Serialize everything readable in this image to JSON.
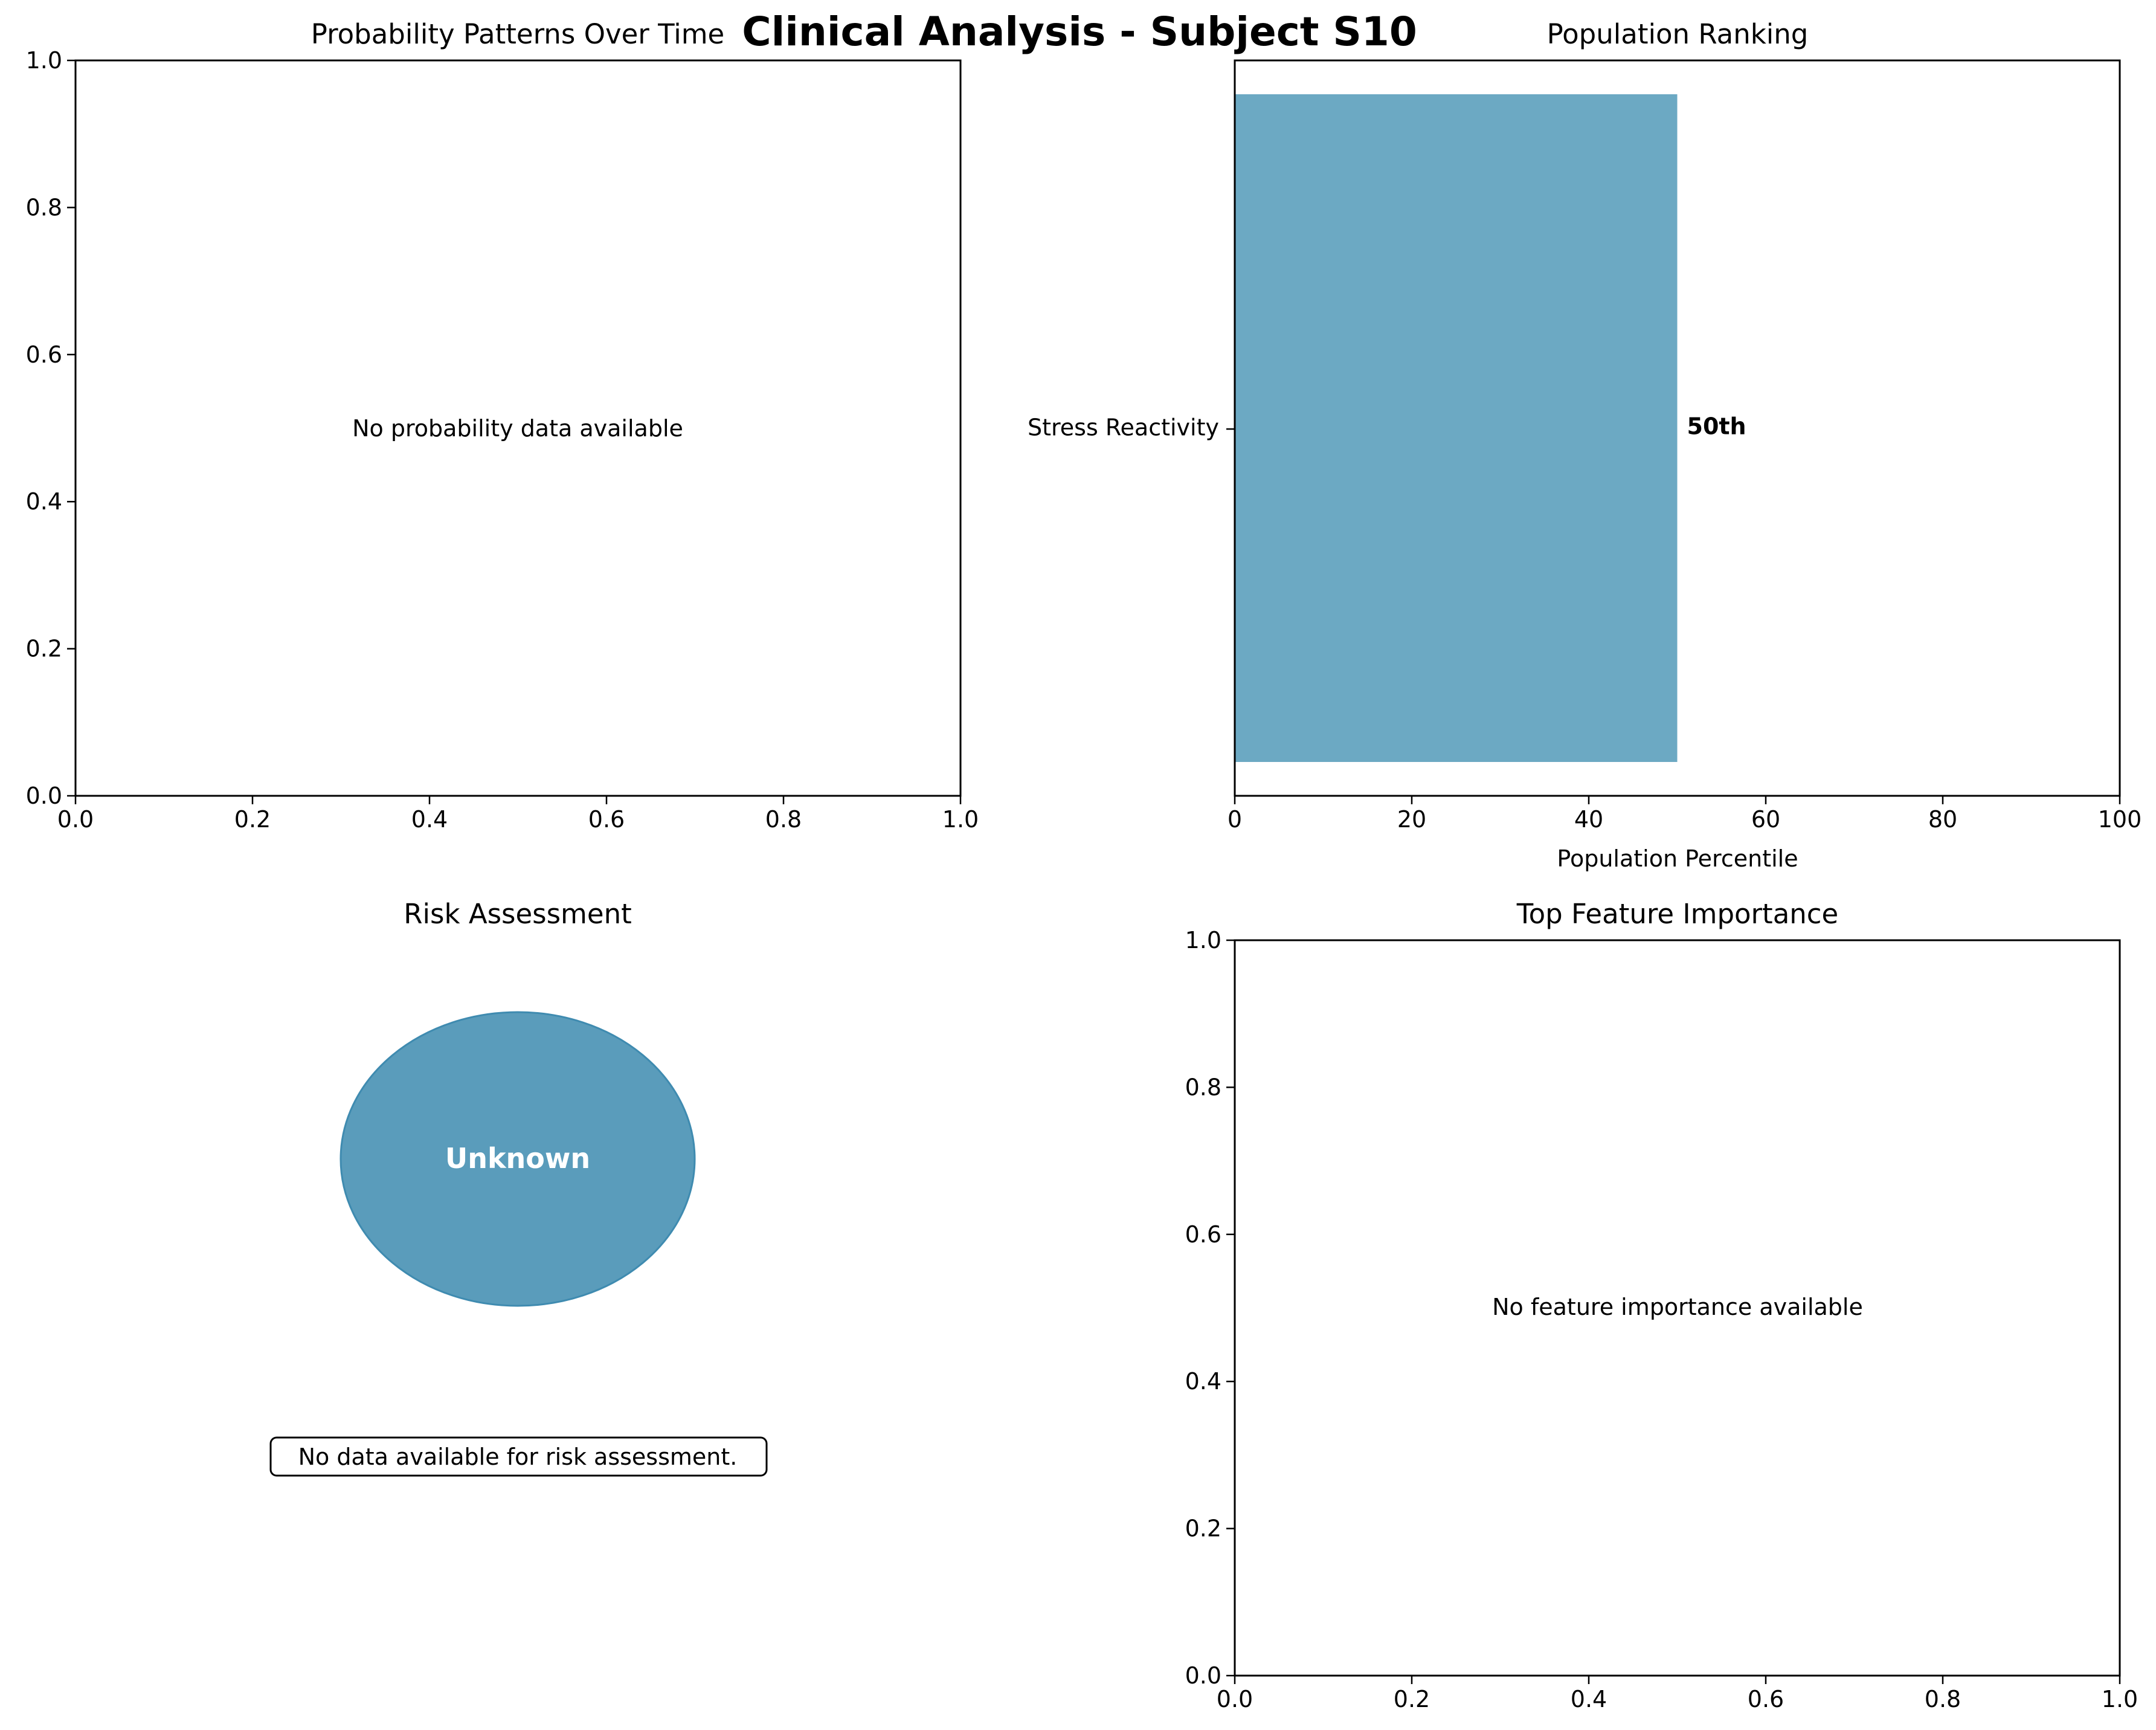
{
  "figure": {
    "suptitle": "Clinical Analysis - Subject S10"
  },
  "chart_data": [
    {
      "type": "line",
      "title": "Probability Patterns Over Time",
      "xlabel": "",
      "ylabel": "",
      "xlim": [
        0.0,
        1.0
      ],
      "ylim": [
        0.0,
        1.0
      ],
      "xticks": [
        "0.0",
        "0.2",
        "0.4",
        "0.6",
        "0.8",
        "1.0"
      ],
      "yticks": [
        "0.0",
        "0.2",
        "0.4",
        "0.6",
        "0.8",
        "1.0"
      ],
      "series": [],
      "annotation": "No probability data available"
    },
    {
      "type": "bar",
      "orientation": "horizontal",
      "title": "Population Ranking",
      "xlabel": "Population Percentile",
      "ylabel": "",
      "xlim": [
        0,
        100
      ],
      "xticks": [
        "0",
        "20",
        "40",
        "60",
        "80",
        "100"
      ],
      "categories": [
        "Stress Reactivity"
      ],
      "values": [
        50
      ],
      "bar_labels": [
        "50th"
      ],
      "colors": [
        "#6ca9c3"
      ]
    },
    {
      "type": "other",
      "title": "Risk Assessment",
      "indicator_label": "Unknown",
      "indicator_color": "#5a9cbb",
      "message": "No data available for risk assessment."
    },
    {
      "type": "bar",
      "title": "Top Feature Importance",
      "xlabel": "",
      "ylabel": "",
      "xlim": [
        0.0,
        1.0
      ],
      "ylim": [
        0.0,
        1.0
      ],
      "xticks": [
        "0.0",
        "0.2",
        "0.4",
        "0.6",
        "0.8",
        "1.0"
      ],
      "yticks": [
        "0.0",
        "0.2",
        "0.4",
        "0.6",
        "0.8",
        "1.0"
      ],
      "series": [],
      "annotation": "No feature importance available"
    }
  ]
}
